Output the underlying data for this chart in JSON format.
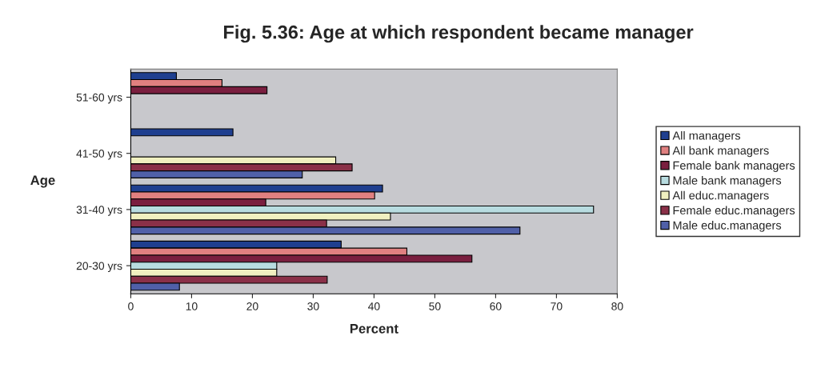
{
  "chart_data": {
    "type": "bar",
    "orientation": "horizontal",
    "title": "Fig. 5.36: Age at which respondent became manager",
    "xlabel": "Percent",
    "ylabel": "Age",
    "categories": [
      "51-60 yrs",
      "41-50 yrs",
      "31-40 yrs",
      "20-30 yrs"
    ],
    "series": [
      {
        "name": "All managers",
        "color": "#1f3f8f",
        "values": [
          7.5,
          16.8,
          41.4,
          34.6
        ]
      },
      {
        "name": "All bank managers",
        "color": "#e08080",
        "values": [
          15,
          null,
          40.1,
          45.4
        ]
      },
      {
        "name": "Female bank managers",
        "color": "#7a1f3f",
        "values": [
          22.4,
          null,
          22.2,
          56.1
        ]
      },
      {
        "name": "Male bank managers",
        "color": "#b8dce0",
        "values": [
          null,
          null,
          76.1,
          24
        ]
      },
      {
        "name": "All educ.managers",
        "color": "#f0f0c0",
        "values": [
          null,
          33.7,
          42.7,
          24
        ]
      },
      {
        "name": "Female educ.managers",
        "color": "#8a3048",
        "values": [
          null,
          36.4,
          32.2,
          32.3
        ]
      },
      {
        "name": "Male educ.managers",
        "color": "#5060a8",
        "values": [
          null,
          28.2,
          64,
          8
        ]
      }
    ],
    "xlim": [
      0,
      80
    ],
    "xticks": [
      0,
      10,
      20,
      30,
      40,
      50,
      60,
      70,
      80
    ],
    "grid": false,
    "legend": "right"
  }
}
